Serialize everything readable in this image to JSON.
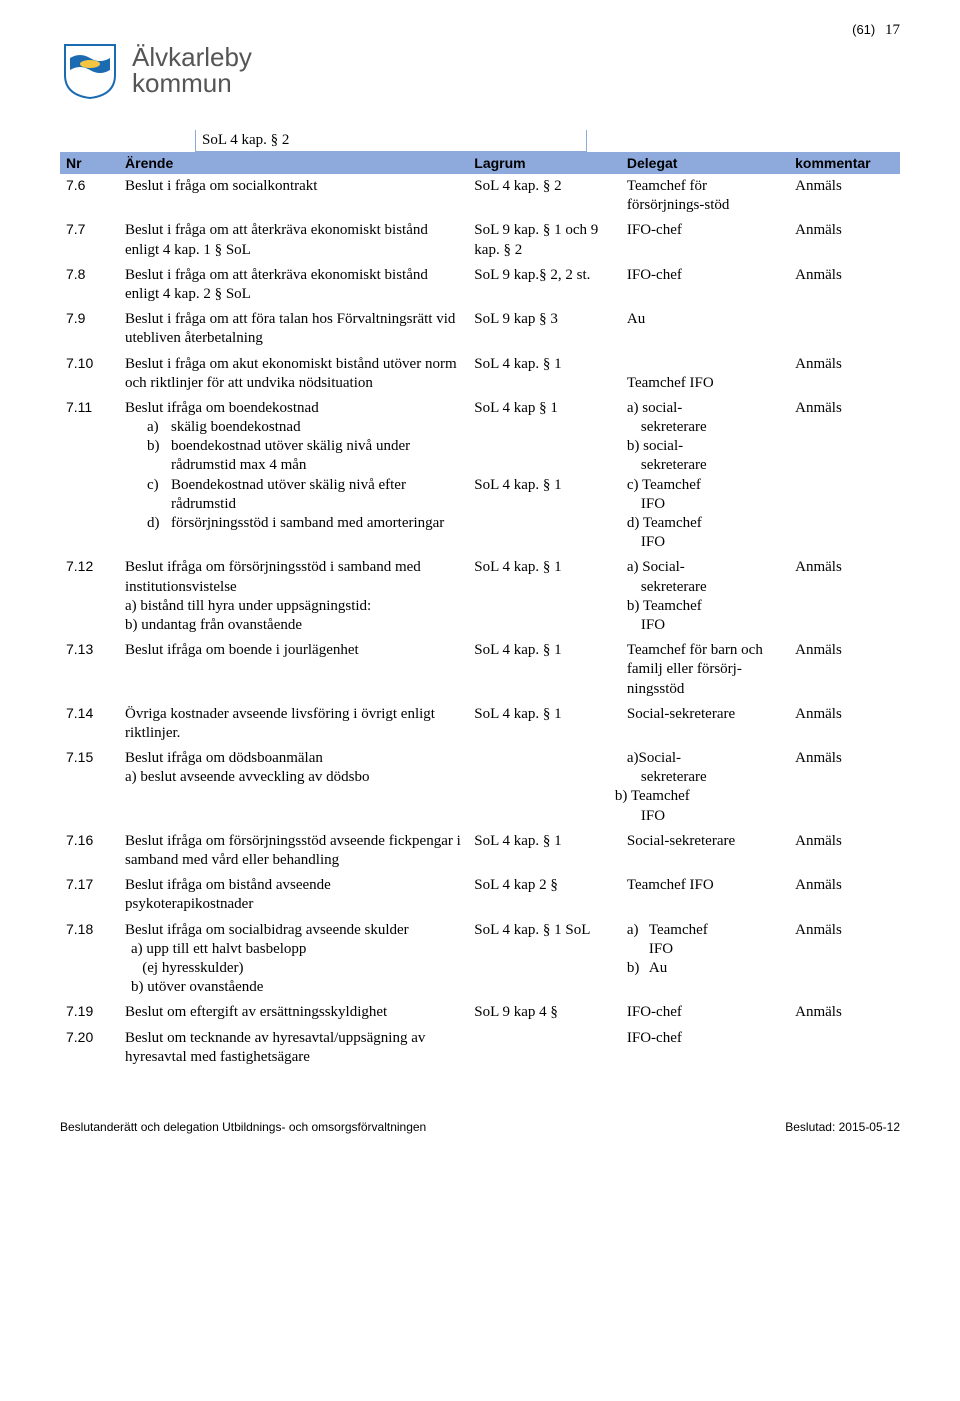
{
  "page": {
    "total": "(61)",
    "current": "17"
  },
  "org": {
    "line1": "Älvkarleby",
    "line2": "kommun"
  },
  "top_cell": "SoL 4 kap. § 2",
  "headers": {
    "nr": "Nr",
    "arende": "Ärende",
    "lagrum": "Lagrum",
    "delegat": "Delegat",
    "kommentar": "kommentar"
  },
  "rows": [
    {
      "nr": "7.6",
      "arende": "Beslut i fråga om socialkontrakt",
      "lagrum": "SoL 4 kap. § 2",
      "delegat": "Teamchef för försörjnings-stöd",
      "kommentar": "Anmäls"
    },
    {
      "nr": "7.7",
      "arende": "Beslut i fråga om att återkräva ekonomiskt bistånd enligt 4 kap. 1 § SoL",
      "lagrum": "SoL 9 kap. § 1 och 9 kap. § 2",
      "delegat": "IFO-chef",
      "kommentar": "Anmäls"
    },
    {
      "nr": "7.8",
      "arende": "Beslut i fråga om att återkräva ekonomiskt bistånd enligt 4 kap. 2 § SoL",
      "lagrum": "SoL 9 kap.§ 2, 2 st.",
      "delegat": "IFO-chef",
      "kommentar": "Anmäls"
    },
    {
      "nr": "7.9",
      "arende": "Beslut i fråga om att föra talan hos Förvaltningsrätt vid utebliven återbetalning",
      "lagrum": "SoL 9 kap § 3",
      "delegat": "Au",
      "kommentar": ""
    },
    {
      "nr": "7.10",
      "arende": "Beslut i fråga om akut ekonomiskt bistånd utöver norm och riktlinjer för att undvika nödsituation",
      "lagrum": "SoL 4 kap. § 1",
      "delegat": "Teamchef IFO",
      "delegat_prefix_blank": true,
      "kommentar": "Anmäls"
    },
    {
      "nr": "7.11",
      "arende_main": "Beslut ifråga om boendekostnad",
      "arende_items": [
        {
          "m": "a)",
          "t": "skälig boendekostnad"
        },
        {
          "m": "b)",
          "t": "boendekostnad utöver skälig nivå under rådrumstid max 4 mån"
        },
        {
          "m": "c)",
          "t": "Boendekostnad utöver skälig nivå efter rådrumstid"
        },
        {
          "m": "d)",
          "t": "försörjningsstöd i samband med amorteringar"
        }
      ],
      "lagrum_lines": [
        "SoL 4 kap § 1",
        "",
        "",
        "",
        "SoL 4 kap. § 1"
      ],
      "delegat_lines": [
        "a) social-",
        "sekreterare",
        "b) social-",
        "sekreterare",
        "c) Teamchef",
        "IFO",
        "d) Teamchef",
        "IFO"
      ],
      "kommentar": "Anmäls"
    },
    {
      "nr": "7.12",
      "arende_main": "Beslut ifråga om försörjningsstöd i samband med institutionsvistelse",
      "arende_extra": [
        "a) bistånd till hyra under uppsägningstid:",
        "b) undantag från ovanstående"
      ],
      "lagrum": "SoL 4 kap. § 1",
      "delegat_lines": [
        "a) Social-",
        "sekreterare",
        "b) Teamchef",
        "IFO"
      ],
      "kommentar": "Anmäls"
    },
    {
      "nr": "7.13",
      "arende": "Beslut ifråga om boende i jourlägenhet",
      "lagrum": "SoL 4 kap. § 1",
      "delegat": "Teamchef för barn och familj eller försörj-ningsstöd",
      "kommentar": "Anmäls"
    },
    {
      "nr": "7.14",
      "arende": "Övriga kostnader avseende livsföring i övrigt enligt riktlinjer.",
      "lagrum": "SoL 4 kap. § 1",
      "delegat": "Social-sekreterare",
      "kommentar": "Anmäls"
    },
    {
      "nr": "7.15",
      "arende_main": "Beslut ifråga om dödsboanmälan",
      "arende_extra": [
        "a) beslut avseende avveckling av dödsbo"
      ],
      "lagrum": "",
      "delegat_lines": [
        "a)Social-",
        "sekreterare",
        "b) Teamchef",
        "IFO"
      ],
      "delegat_b_shift": true,
      "kommentar": "Anmäls"
    },
    {
      "nr": "7.16",
      "arende": "Beslut ifråga om försörjningsstöd avseende fickpengar i samband med vård eller behandling",
      "lagrum": "SoL 4 kap. § 1",
      "delegat": "Social-sekreterare",
      "kommentar": "Anmäls"
    },
    {
      "nr": "7.17",
      "arende": "Beslut ifråga om bistånd avseende psykoterapikostnader",
      "lagrum": "SoL 4 kap 2 §",
      "delegat": "Teamchef IFO",
      "kommentar": "Anmäls"
    },
    {
      "nr": "7.18",
      "arende_main": "Beslut ifråga om socialbidrag avseende skulder",
      "arende_extra_indent": [
        "a) upp till ett halvt basbelopp",
        "   (ej hyresskulder)",
        "b) utöver ovanstående"
      ],
      "lagrum": "SoL 4 kap. § 1 SoL",
      "delegat_lines_ind": [
        {
          "m": "a)",
          "t": "Teamchef"
        },
        {
          "m": "",
          "t": "IFO"
        },
        {
          "m": "b)",
          "t": "Au"
        }
      ],
      "kommentar": "Anmäls"
    },
    {
      "nr": "7.19",
      "arende": "Beslut om eftergift av ersättningsskyldighet",
      "lagrum": "SoL 9 kap 4 §",
      "delegat": "IFO-chef",
      "kommentar": "Anmäls"
    },
    {
      "nr": "7.20",
      "arende": "Beslut om tecknande av hyresavtal/uppsägning av hyresavtal med fastighetsägare",
      "lagrum": "",
      "delegat": "IFO-chef",
      "kommentar": ""
    }
  ],
  "footer": {
    "left": "Beslutanderätt och delegation  Utbildnings- och omsorgsförvaltningen",
    "right": "Beslutad: 2015-05-12"
  }
}
